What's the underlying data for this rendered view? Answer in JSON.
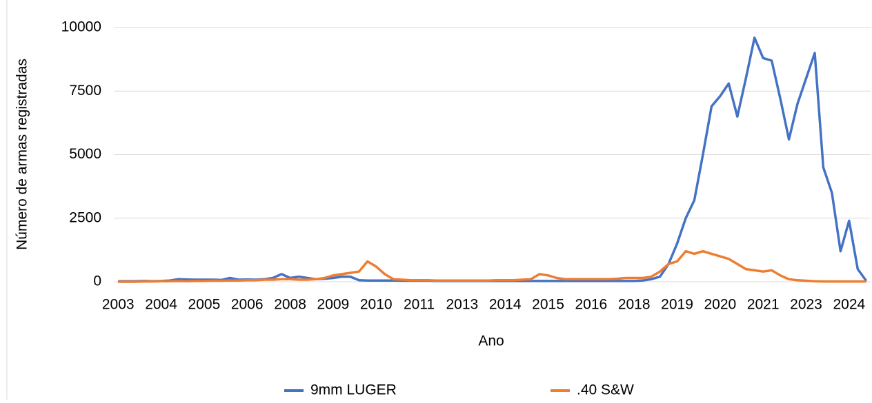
{
  "chart_data": {
    "type": "line",
    "y_label": "Número de armas registradas",
    "x_label": "Ano",
    "categories": [
      "2003",
      null,
      null,
      null,
      null,
      "2004",
      null,
      null,
      null,
      null,
      "2005",
      null,
      null,
      null,
      null,
      "2006",
      null,
      null,
      null,
      null,
      "2008",
      null,
      null,
      null,
      null,
      "2009",
      null,
      null,
      null,
      null,
      "2010",
      null,
      null,
      null,
      null,
      "2011",
      null,
      null,
      null,
      null,
      "2013",
      null,
      null,
      null,
      null,
      "2014",
      null,
      null,
      null,
      null,
      "2015",
      null,
      null,
      null,
      null,
      "2016",
      null,
      null,
      null,
      null,
      "2018",
      null,
      null,
      null,
      null,
      "2019",
      null,
      null,
      null,
      null,
      "2020",
      null,
      null,
      null,
      null,
      "2021",
      null,
      null,
      null,
      null,
      "2023",
      null,
      null,
      null,
      null,
      "2024",
      null,
      null
    ],
    "series": [
      {
        "name": "9mm LUGER",
        "color": "#4472c4",
        "values": [
          20,
          20,
          20,
          30,
          20,
          30,
          50,
          100,
          90,
          80,
          80,
          80,
          70,
          150,
          80,
          90,
          80,
          100,
          150,
          300,
          150,
          200,
          150,
          100,
          120,
          150,
          200,
          200,
          60,
          50,
          50,
          50,
          50,
          40,
          40,
          40,
          40,
          30,
          30,
          30,
          30,
          30,
          30,
          30,
          30,
          30,
          30,
          30,
          30,
          30,
          30,
          30,
          30,
          30,
          30,
          30,
          30,
          30,
          30,
          30,
          30,
          50,
          100,
          200,
          700,
          1500,
          2500,
          3200,
          5000,
          6900,
          7300,
          7800,
          6500,
          8000,
          9600,
          8800,
          8700,
          7200,
          5600,
          7000,
          8000,
          9000,
          4500,
          3500,
          1200,
          2400,
          500,
          30
        ]
      },
      {
        "name": ".40 S&W",
        "color": "#ed7d31",
        "values": [
          0,
          0,
          0,
          10,
          10,
          20,
          20,
          30,
          20,
          30,
          30,
          40,
          40,
          50,
          50,
          60,
          60,
          80,
          80,
          100,
          100,
          80,
          80,
          100,
          150,
          250,
          300,
          350,
          400,
          800,
          600,
          300,
          100,
          80,
          60,
          60,
          60,
          50,
          50,
          50,
          50,
          50,
          50,
          50,
          60,
          60,
          60,
          80,
          100,
          300,
          250,
          150,
          100,
          100,
          100,
          100,
          100,
          100,
          120,
          150,
          150,
          150,
          200,
          400,
          700,
          800,
          1200,
          1100,
          1200,
          1100,
          1000,
          900,
          700,
          500,
          450,
          400,
          450,
          250,
          100,
          60,
          40,
          20,
          10,
          10,
          10,
          10,
          10,
          10
        ]
      }
    ],
    "ylim": [
      0,
      10000
    ],
    "yticks": [
      0,
      2500,
      5000,
      7500,
      10000
    ],
    "grid": true,
    "legend": "bottom"
  }
}
